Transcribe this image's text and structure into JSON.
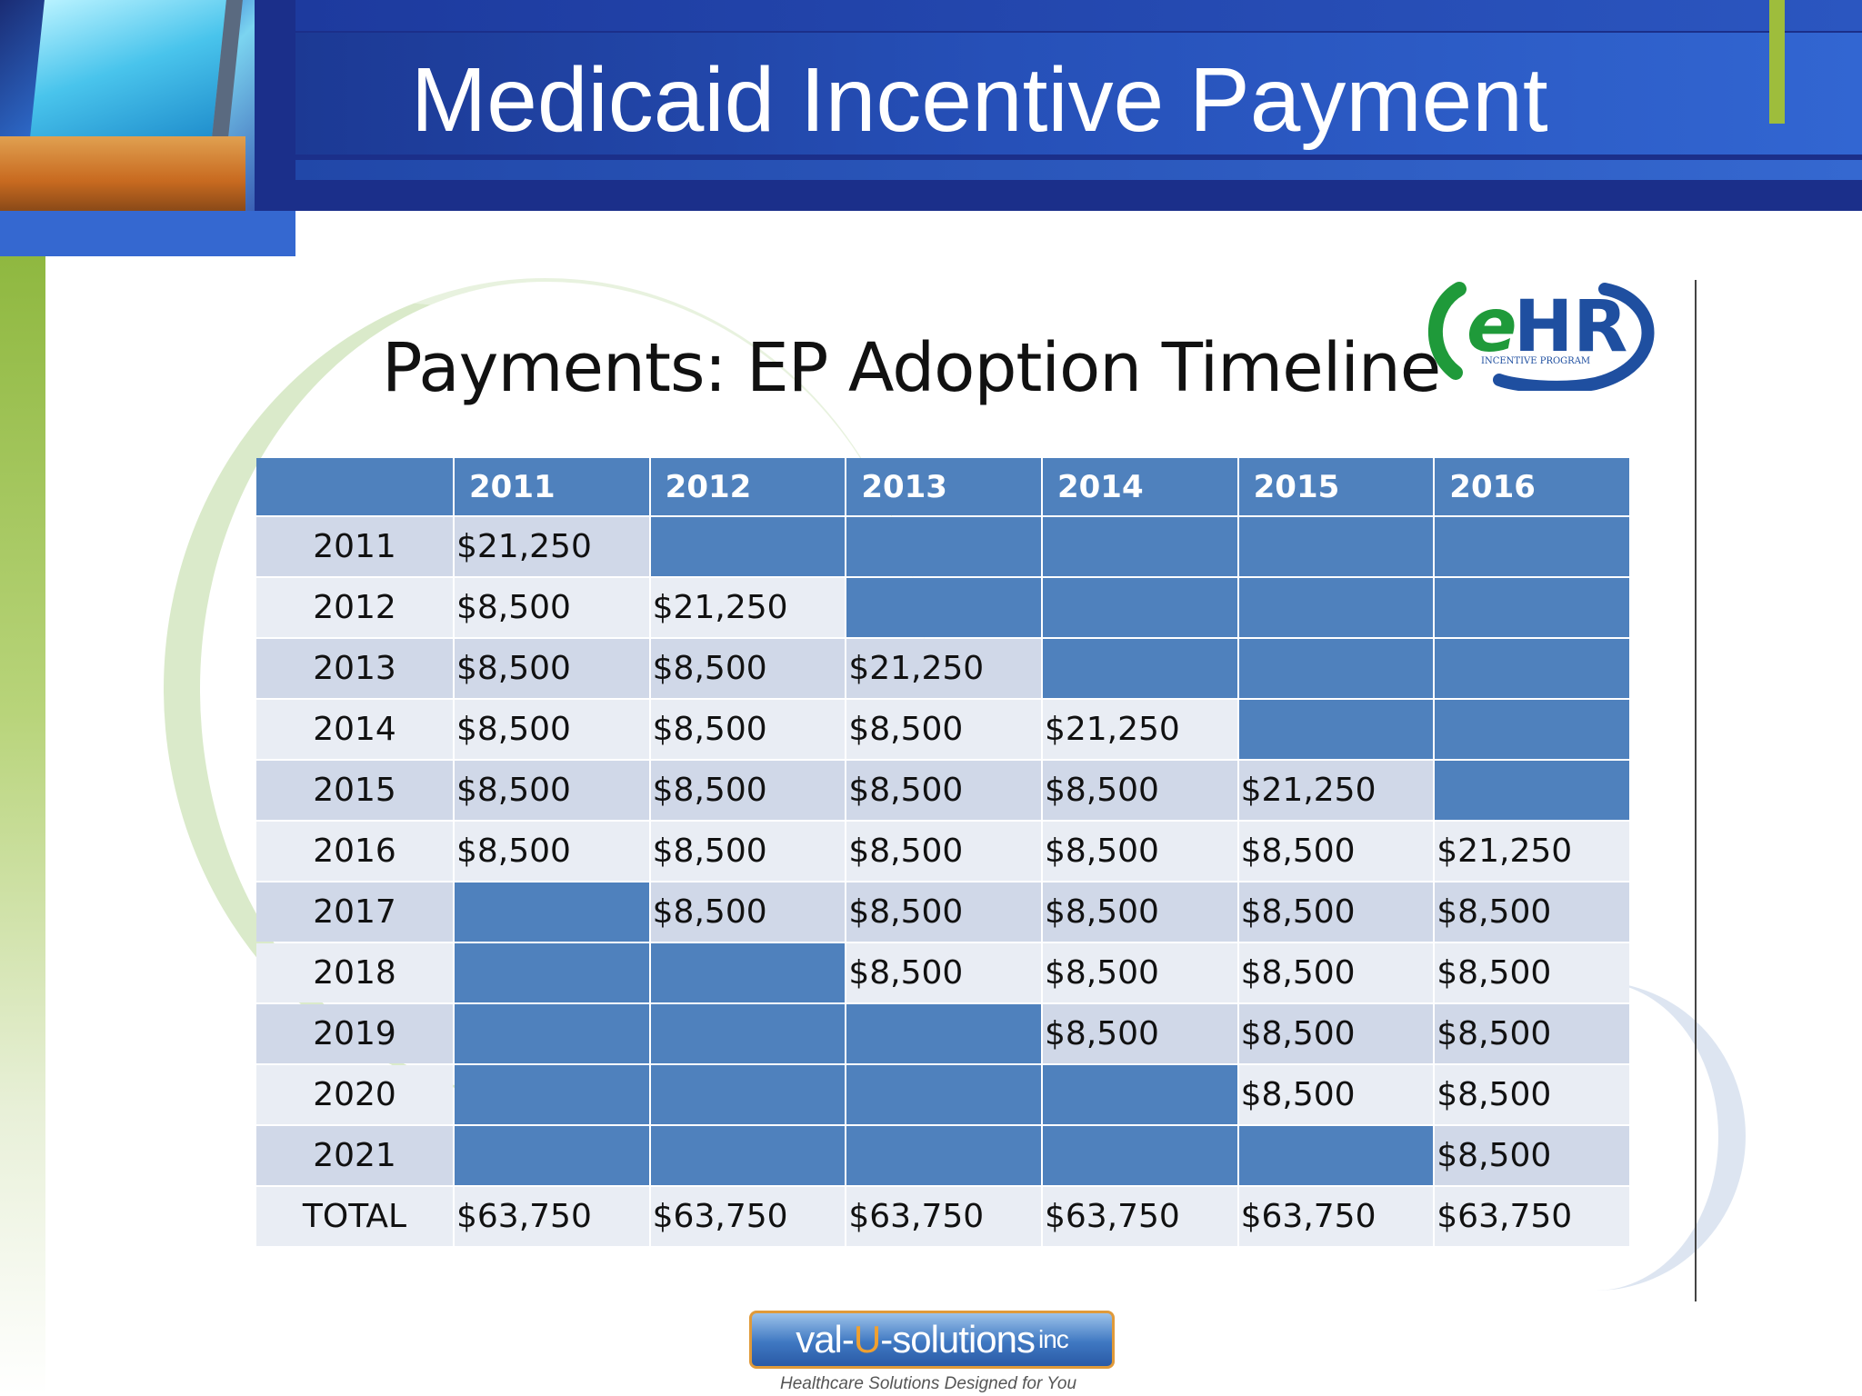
{
  "slide": {
    "title": "Medicaid Incentive Payment",
    "subtitle": "Payments: EP Adoption Timeline"
  },
  "ehr_logo": {
    "mark": "eHR",
    "tagline": "INCENTIVE PROGRAM",
    "colors": {
      "green": "#1f9a3a",
      "blue": "#1f4fa0"
    }
  },
  "table": {
    "headers": [
      "",
      "2011",
      "2012",
      "2013",
      "2014",
      "2015",
      "2016"
    ],
    "rows": [
      {
        "year": "2011",
        "cells": [
          "$21,250",
          "",
          "",
          "",
          "",
          ""
        ]
      },
      {
        "year": "2012",
        "cells": [
          "$8,500",
          "$21,250",
          "",
          "",
          "",
          ""
        ]
      },
      {
        "year": "2013",
        "cells": [
          "$8,500",
          "$8,500",
          "$21,250",
          "",
          "",
          ""
        ]
      },
      {
        "year": "2014",
        "cells": [
          "$8,500",
          "$8,500",
          "$8,500",
          "$21,250",
          "",
          ""
        ]
      },
      {
        "year": "2015",
        "cells": [
          "$8,500",
          "$8,500",
          "$8,500",
          "$8,500",
          "$21,250",
          ""
        ]
      },
      {
        "year": "2016",
        "cells": [
          "$8,500",
          "$8,500",
          "$8,500",
          "$8,500",
          "$8,500",
          "$21,250"
        ]
      },
      {
        "year": "2017",
        "cells": [
          "",
          "$8,500",
          "$8,500",
          "$8,500",
          "$8,500",
          "$8,500"
        ]
      },
      {
        "year": "2018",
        "cells": [
          "",
          "",
          "$8,500",
          "$8,500",
          "$8,500",
          "$8,500"
        ]
      },
      {
        "year": "2019",
        "cells": [
          "",
          "",
          "",
          "$8,500",
          "$8,500",
          "$8,500"
        ]
      },
      {
        "year": "2020",
        "cells": [
          "",
          "",
          "",
          "",
          "$8,500",
          "$8,500"
        ]
      },
      {
        "year": "2021",
        "cells": [
          "",
          "",
          "",
          "",
          "",
          "$8,500"
        ]
      }
    ],
    "total": {
      "label": "TOTAL",
      "cells": [
        "$63,750",
        "$63,750",
        "$63,750",
        "$63,750",
        "$63,750",
        "$63,750"
      ]
    }
  },
  "footer": {
    "logo_parts": [
      "val-",
      "U",
      "-solutions",
      "inc"
    ],
    "tagline": "Healthcare Solutions Designed for You"
  },
  "colors": {
    "header_blue": "#1b2f8a",
    "table_header": "#4f81bd",
    "row_odd": "#d0d8e8",
    "row_even": "#e9edf4",
    "accent_green": "#9ebd3c"
  }
}
